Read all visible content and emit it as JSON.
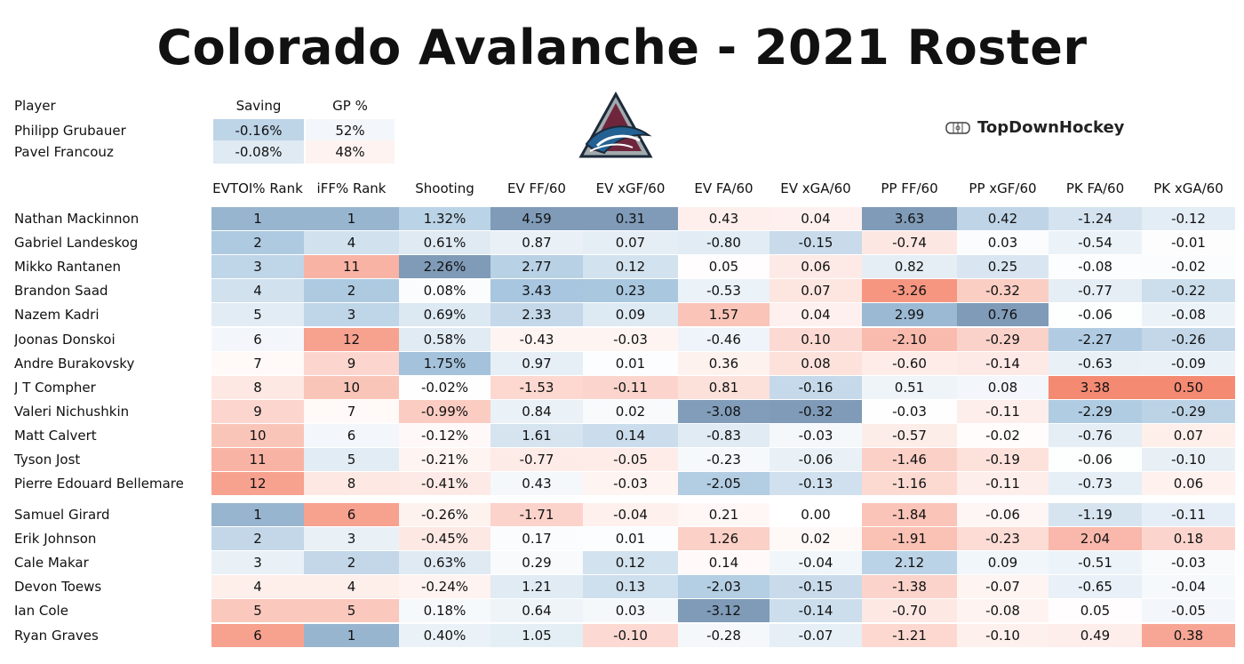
{
  "title": "Colorado Avalanche - 2021 Roster",
  "brand": "TopDownHockey",
  "goalie_table": {
    "columns": [
      "Player",
      "Saving",
      "GP %"
    ],
    "rows": [
      {
        "name": "Philipp Grubauer",
        "saving": "-0.16%",
        "gp": "52%"
      },
      {
        "name": "Pavel Francouz",
        "saving": "-0.08%",
        "gp": "48%"
      }
    ]
  },
  "skater_table": {
    "columns": [
      "EVTOI% Rank",
      "iFF% Rank",
      "Shooting",
      "EV FF/60",
      "EV xGF/60",
      "EV FA/60",
      "EV xGA/60",
      "PP FF/60",
      "PP xGF/60",
      "PK FA/60",
      "PK xGA/60"
    ],
    "forwards": [
      {
        "name": "Nathan Mackinnon",
        "values": [
          "1",
          "1",
          "1.32%",
          "4.59",
          "0.31",
          "0.43",
          "0.04",
          "3.63",
          "0.42",
          "-1.24",
          "-0.12"
        ]
      },
      {
        "name": "Gabriel Landeskog",
        "values": [
          "2",
          "4",
          "0.61%",
          "0.87",
          "0.07",
          "-0.80",
          "-0.15",
          "-0.74",
          "0.03",
          "-0.54",
          "-0.01"
        ]
      },
      {
        "name": "Mikko Rantanen",
        "values": [
          "3",
          "11",
          "2.26%",
          "2.77",
          "0.12",
          "0.05",
          "0.06",
          "0.82",
          "0.25",
          "-0.08",
          "-0.02"
        ]
      },
      {
        "name": "Brandon Saad",
        "values": [
          "4",
          "2",
          "0.08%",
          "3.43",
          "0.23",
          "-0.53",
          "0.07",
          "-3.26",
          "-0.32",
          "-0.77",
          "-0.22"
        ]
      },
      {
        "name": "Nazem Kadri",
        "values": [
          "5",
          "3",
          "0.69%",
          "2.33",
          "0.09",
          "1.57",
          "0.04",
          "2.99",
          "0.76",
          "-0.06",
          "-0.08"
        ]
      },
      {
        "name": "Joonas Donskoi",
        "values": [
          "6",
          "12",
          "0.58%",
          "-0.43",
          "-0.03",
          "-0.46",
          "0.10",
          "-2.10",
          "-0.29",
          "-2.27",
          "-0.26"
        ]
      },
      {
        "name": "Andre Burakovsky",
        "values": [
          "7",
          "9",
          "1.75%",
          "0.97",
          "0.01",
          "0.36",
          "0.08",
          "-0.60",
          "-0.14",
          "-0.63",
          "-0.09"
        ]
      },
      {
        "name": "J T  Compher",
        "values": [
          "8",
          "10",
          "-0.02%",
          "-1.53",
          "-0.11",
          "0.81",
          "-0.16",
          "0.51",
          "0.08",
          "3.38",
          "0.50"
        ]
      },
      {
        "name": "Valeri Nichushkin",
        "values": [
          "9",
          "7",
          "-0.99%",
          "0.84",
          "0.02",
          "-3.08",
          "-0.32",
          "-0.03",
          "-0.11",
          "-2.29",
          "-0.29"
        ]
      },
      {
        "name": "Matt Calvert",
        "values": [
          "10",
          "6",
          "-0.12%",
          "1.61",
          "0.14",
          "-0.83",
          "-0.03",
          "-0.57",
          "-0.02",
          "-0.76",
          "0.07"
        ]
      },
      {
        "name": "Tyson Jost",
        "values": [
          "11",
          "5",
          "-0.21%",
          "-0.77",
          "-0.05",
          "-0.23",
          "-0.06",
          "-1.46",
          "-0.19",
          "-0.06",
          "-0.10"
        ]
      },
      {
        "name": "Pierre Edouard Bellemare",
        "values": [
          "12",
          "8",
          "-0.41%",
          "0.43",
          "-0.03",
          "-2.05",
          "-0.13",
          "-1.16",
          "-0.11",
          "-0.73",
          "0.06"
        ]
      }
    ],
    "defense": [
      {
        "name": "Samuel Girard",
        "values": [
          "1",
          "6",
          "-0.26%",
          "-1.71",
          "-0.04",
          "0.21",
          "0.00",
          "-1.84",
          "-0.06",
          "-1.19",
          "-0.11"
        ]
      },
      {
        "name": "Erik Johnson",
        "values": [
          "2",
          "3",
          "-0.45%",
          "0.17",
          "0.01",
          "1.26",
          "0.02",
          "-1.91",
          "-0.23",
          "2.04",
          "0.18"
        ]
      },
      {
        "name": "Cale Makar",
        "values": [
          "3",
          "2",
          "0.63%",
          "0.29",
          "0.12",
          "0.14",
          "-0.04",
          "2.12",
          "0.09",
          "-0.51",
          "-0.03"
        ]
      },
      {
        "name": "Devon Toews",
        "values": [
          "4",
          "4",
          "-0.24%",
          "1.21",
          "0.13",
          "-2.03",
          "-0.15",
          "-1.38",
          "-0.07",
          "-0.65",
          "-0.04"
        ]
      },
      {
        "name": "Ian Cole",
        "values": [
          "5",
          "5",
          "0.18%",
          "0.64",
          "0.03",
          "-3.12",
          "-0.14",
          "-0.70",
          "-0.08",
          "0.05",
          "-0.05"
        ]
      },
      {
        "name": "Ryan Graves",
        "values": [
          "6",
          "1",
          "0.40%",
          "1.05",
          "-0.10",
          "-0.28",
          "-0.07",
          "-1.21",
          "-0.10",
          "0.49",
          "0.38"
        ]
      }
    ]
  },
  "colors": {
    "good_dark": "#7f9bb8",
    "good": "#a8c6df",
    "neutral": "#ffffff",
    "bad": "#f58a73",
    "text": "#111111"
  }
}
